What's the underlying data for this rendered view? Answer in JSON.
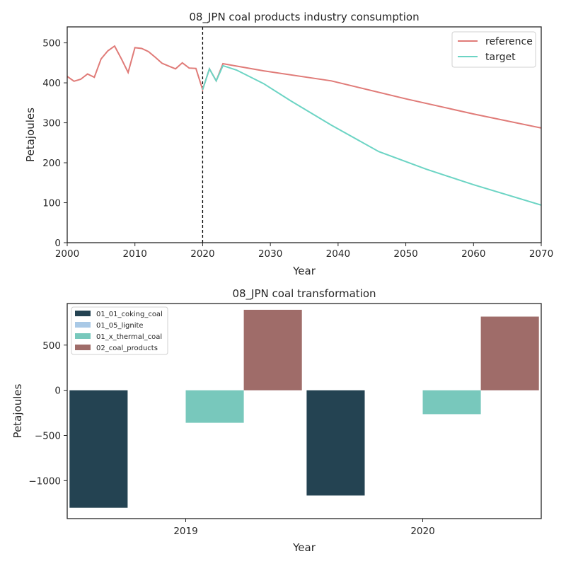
{
  "chart_data": [
    {
      "type": "line",
      "title": "08_JPN coal products industry consumption",
      "xlabel": "Year",
      "ylabel": "Petajoules",
      "xlim": [
        2000,
        2070
      ],
      "ylim": [
        0,
        540
      ],
      "xticks": [
        2000,
        2010,
        2020,
        2030,
        2040,
        2050,
        2060,
        2070
      ],
      "yticks": [
        0,
        100,
        200,
        300,
        400,
        500
      ],
      "grid": false,
      "legend": "top-right",
      "vline": 2020,
      "series": [
        {
          "name": "reference",
          "color": "#e07b78",
          "points": [
            [
              2000,
              416
            ],
            [
              2001,
              404
            ],
            [
              2002,
              409
            ],
            [
              2003,
              422
            ],
            [
              2004,
              414
            ],
            [
              2005,
              460
            ],
            [
              2006,
              480
            ],
            [
              2007,
              492
            ],
            [
              2008,
              460
            ],
            [
              2009,
              426
            ],
            [
              2010,
              488
            ],
            [
              2011,
              486
            ],
            [
              2012,
              478
            ],
            [
              2013,
              464
            ],
            [
              2014,
              449
            ],
            [
              2015,
              442
            ],
            [
              2016,
              435
            ],
            [
              2017,
              450
            ],
            [
              2018,
              437
            ],
            [
              2019,
              436
            ],
            [
              2020,
              383
            ],
            [
              2021,
              435
            ],
            [
              2022,
              405
            ],
            [
              2023,
              448
            ],
            [
              2029,
              430
            ],
            [
              2039,
              405
            ],
            [
              2050,
              360
            ],
            [
              2060,
              322
            ],
            [
              2070,
              287
            ]
          ]
        },
        {
          "name": "target",
          "color": "#6cd4c4",
          "points": [
            [
              2020,
              383
            ],
            [
              2021,
              435
            ],
            [
              2022,
              405
            ],
            [
              2023,
              443
            ],
            [
              2025,
              432
            ],
            [
              2029,
              398
            ],
            [
              2033,
              355
            ],
            [
              2039,
              294
            ],
            [
              2046,
              228
            ],
            [
              2053,
              184
            ],
            [
              2060,
              145
            ],
            [
              2070,
              94
            ]
          ]
        }
      ]
    },
    {
      "type": "bar",
      "title": "08_JPN coal transformation",
      "xlabel": "Year",
      "ylabel": "Petajoules",
      "categories": [
        "2019",
        "2020"
      ],
      "ylim": [
        -1420,
        960
      ],
      "yticks": [
        -1000,
        -500,
        0,
        500
      ],
      "ytick_labels": [
        "−1000",
        "−500",
        "0",
        "500"
      ],
      "grid": false,
      "legend": "top-left",
      "series": [
        {
          "name": "01_01_coking_coal",
          "color": "#244352",
          "values": [
            -1300,
            -1165
          ]
        },
        {
          "name": "01_05_lignite",
          "color": "#a9c9e6",
          "values": [
            0,
            0
          ]
        },
        {
          "name": "01_x_thermal_coal",
          "color": "#78c8bc",
          "values": [
            -360,
            -265
          ]
        },
        {
          "name": "02_coal_products",
          "color": "#9f6c69",
          "values": [
            890,
            815
          ]
        }
      ]
    }
  ]
}
